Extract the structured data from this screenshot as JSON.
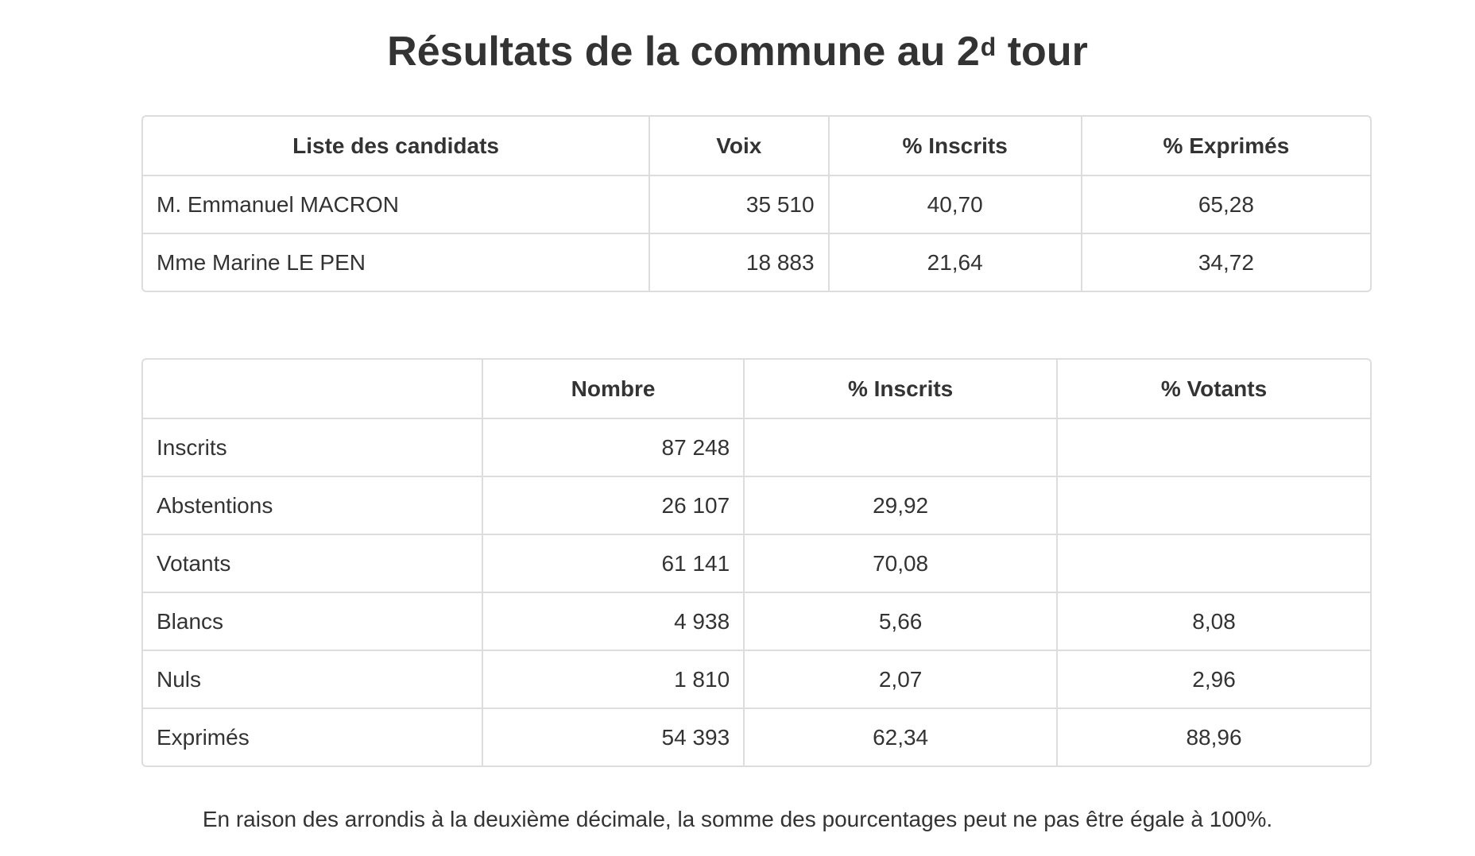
{
  "title": {
    "text": "Résultats de la commune au 2",
    "superscript": "d",
    "suffix": " tour"
  },
  "candidates": {
    "headers": [
      "Liste des candidats",
      "Voix",
      "% Inscrits",
      "% Exprimés"
    ],
    "rows": [
      {
        "name": "M. Emmanuel MACRON",
        "voix": "35 510",
        "inscrits": "40,70",
        "exprimes": "65,28"
      },
      {
        "name": "Mme Marine LE PEN",
        "voix": "18 883",
        "inscrits": "21,64",
        "exprimes": "34,72"
      }
    ]
  },
  "participation": {
    "headers": [
      "",
      "Nombre",
      "% Inscrits",
      "% Votants"
    ],
    "rows": [
      {
        "label": "Inscrits",
        "nombre": "87 248",
        "inscrits": "",
        "votants": ""
      },
      {
        "label": "Abstentions",
        "nombre": "26 107",
        "inscrits": "29,92",
        "votants": ""
      },
      {
        "label": "Votants",
        "nombre": "61 141",
        "inscrits": "70,08",
        "votants": ""
      },
      {
        "label": "Blancs",
        "nombre": "4 938",
        "inscrits": "5,66",
        "votants": "8,08"
      },
      {
        "label": "Nuls",
        "nombre": "1 810",
        "inscrits": "2,07",
        "votants": "2,96"
      },
      {
        "label": "Exprimés",
        "nombre": "54 393",
        "inscrits": "62,34",
        "votants": "88,96"
      }
    ]
  },
  "footnote": "En raison des arrondis à la deuxième décimale, la somme des pourcentages peut ne pas être égale à 100%."
}
